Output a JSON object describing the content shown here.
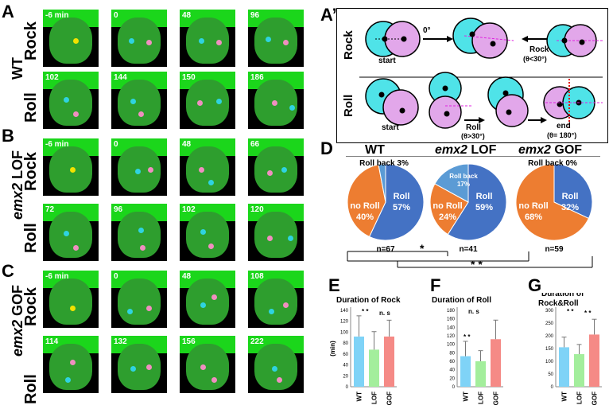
{
  "panels": {
    "A": "A",
    "A_prime": "A’",
    "B": "B",
    "C": "C",
    "D": "D",
    "E": "E",
    "F": "F",
    "G": "G"
  },
  "row_labels": {
    "wt": "WT",
    "rock": "Rock",
    "roll": "Roll",
    "emx2_lof": "emx2 LOF",
    "emx2_gof": "emx2 GOF"
  },
  "frames": {
    "A_rock": [
      "-6 min",
      "0",
      "48",
      "96"
    ],
    "A_roll": [
      "102",
      "144",
      "150",
      "186"
    ],
    "B_rock": [
      "-6 min",
      "0",
      "48",
      "66"
    ],
    "B_roll": [
      "72",
      "96",
      "102",
      "120"
    ],
    "C_rock": [
      "-6 min",
      "0",
      "48",
      "108"
    ],
    "C_roll": [
      "114",
      "132",
      "156",
      "222"
    ]
  },
  "diagram": {
    "rock_label": "Rock",
    "roll_label": "Roll",
    "start1": "start",
    "zero_deg": "0°",
    "rock_cond": "Rock",
    "rock_theta": "(θ<30°)",
    "start2": "start",
    "roll_cond": "Roll",
    "roll_theta": "(θ>30°)",
    "end": "end",
    "end_theta": "(θ= 180°)",
    "theta": "θ"
  },
  "colors": {
    "cyan_cell": "#4fe3e8",
    "pink_cell": "#e2a7ea",
    "roll_blue": "#4472c4",
    "noroll_orange": "#ed7d31",
    "rollback_lightblue": "#5b9bd5",
    "bar_wt": "#7fd3f7",
    "bar_lof": "#a3ee9c",
    "bar_gof": "#f58a86",
    "micro_green": "#1bd61b",
    "magenta_line": "#e020e0",
    "red_line": "#e01010"
  },
  "pies": [
    {
      "title": "WT",
      "n": "n=67",
      "slices": [
        {
          "label": "Roll",
          "pct": "57%",
          "value": 57
        },
        {
          "label": "no Roll",
          "pct": "40%",
          "value": 40
        },
        {
          "label": "Roll back",
          "pct": "3%",
          "value": 3
        }
      ]
    },
    {
      "title_it": "emx2",
      "title_rest": " LOF",
      "n": "n=41",
      "slices": [
        {
          "label": "Roll",
          "pct": "59%",
          "value": 59
        },
        {
          "label": "no Roll",
          "pct": "24%",
          "value": 24
        },
        {
          "label": "Roll back",
          "pct": "17%",
          "value": 17
        }
      ]
    },
    {
      "title_it": "emx2",
      "title_rest": " GOF",
      "n": "n=59",
      "slices": [
        {
          "label": "Roll",
          "pct": "32%",
          "value": 32
        },
        {
          "label": "no Roll",
          "pct": "68%",
          "value": 68
        },
        {
          "label": "Roll back",
          "pct": "0%",
          "value": 0
        }
      ]
    }
  ],
  "sig": {
    "single": "*",
    "double": "* *"
  },
  "chart_data": [
    {
      "type": "pie",
      "title": "WT",
      "categories": [
        "Roll",
        "no Roll",
        "Roll back"
      ],
      "values": [
        57,
        40,
        3
      ]
    },
    {
      "type": "pie",
      "title": "emx2 LOF",
      "categories": [
        "Roll",
        "no Roll",
        "Roll back"
      ],
      "values": [
        59,
        24,
        17
      ]
    },
    {
      "type": "pie",
      "title": "emx2 GOF",
      "categories": [
        "Roll",
        "no Roll",
        "Roll back"
      ],
      "values": [
        32,
        68,
        0
      ]
    },
    {
      "type": "bar",
      "title": "Duration of Rock",
      "ylabel": "(min)",
      "categories": [
        "WT",
        "LOF",
        "GOF"
      ],
      "values": [
        92,
        68,
        92
      ],
      "errors": [
        38,
        33,
        30
      ],
      "ylim": [
        0,
        140
      ],
      "yticks": [
        0,
        20,
        40,
        60,
        80,
        100,
        120,
        140
      ],
      "annotations": [
        "* *",
        "n. s"
      ]
    },
    {
      "type": "bar",
      "title": "Duration of Roll",
      "categories": [
        "WT",
        "LOF",
        "GOF"
      ],
      "values": [
        72,
        60,
        112
      ],
      "errors": [
        35,
        25,
        45
      ],
      "ylim": [
        0,
        180
      ],
      "yticks": [
        0,
        20,
        40,
        60,
        80,
        100,
        120,
        140,
        160,
        180
      ],
      "annotations": [
        "n. s",
        "* *"
      ]
    },
    {
      "type": "bar",
      "title": "Duration of Rock&Roll",
      "categories": [
        "WT",
        "LOF",
        "GOF"
      ],
      "values": [
        155,
        128,
        205
      ],
      "errors": [
        40,
        38,
        60
      ],
      "ylim": [
        0,
        300
      ],
      "yticks": [
        0,
        50,
        100,
        150,
        200,
        250,
        300
      ],
      "annotations": [
        "* *",
        "* *"
      ]
    }
  ]
}
